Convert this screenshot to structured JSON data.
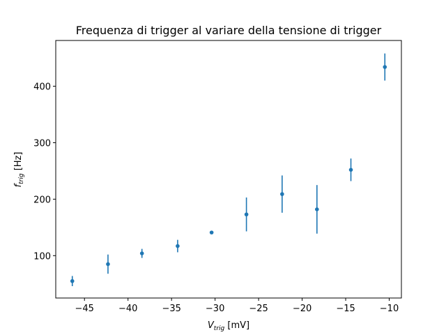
{
  "chart_data": {
    "type": "scatter",
    "title": "Frequenza di trigger al variare della tensione di trigger",
    "xlabel": {
      "main": "V",
      "sub": "trig",
      "unit": " [mV]"
    },
    "ylabel": {
      "main": "f",
      "sub": "trig",
      "unit": " [Hz]"
    },
    "xlim": [
      -48.3,
      -8.6
    ],
    "ylim": [
      25,
      481
    ],
    "xticks": [
      -45,
      -40,
      -35,
      -30,
      -25,
      -20,
      -15,
      -10
    ],
    "xtick_labels": [
      "−45",
      "−40",
      "−35",
      "−30",
      "−25",
      "−20",
      "−15",
      "−10"
    ],
    "yticks": [
      100,
      200,
      300,
      400
    ],
    "ytick_labels": [
      "100",
      "200",
      "300",
      "400"
    ],
    "grid": false,
    "color": "#1f77b4",
    "series": [
      {
        "x": [
          -46.4,
          -42.3,
          -38.4,
          -34.3,
          -30.4,
          -26.4,
          -22.3,
          -18.3,
          -14.4,
          -10.5
        ],
        "y": [
          55,
          85,
          104,
          117,
          141,
          173,
          209,
          182,
          252,
          434
        ],
        "yerr": [
          9,
          17,
          8,
          11,
          2,
          30,
          33,
          43,
          20,
          24
        ]
      }
    ]
  }
}
